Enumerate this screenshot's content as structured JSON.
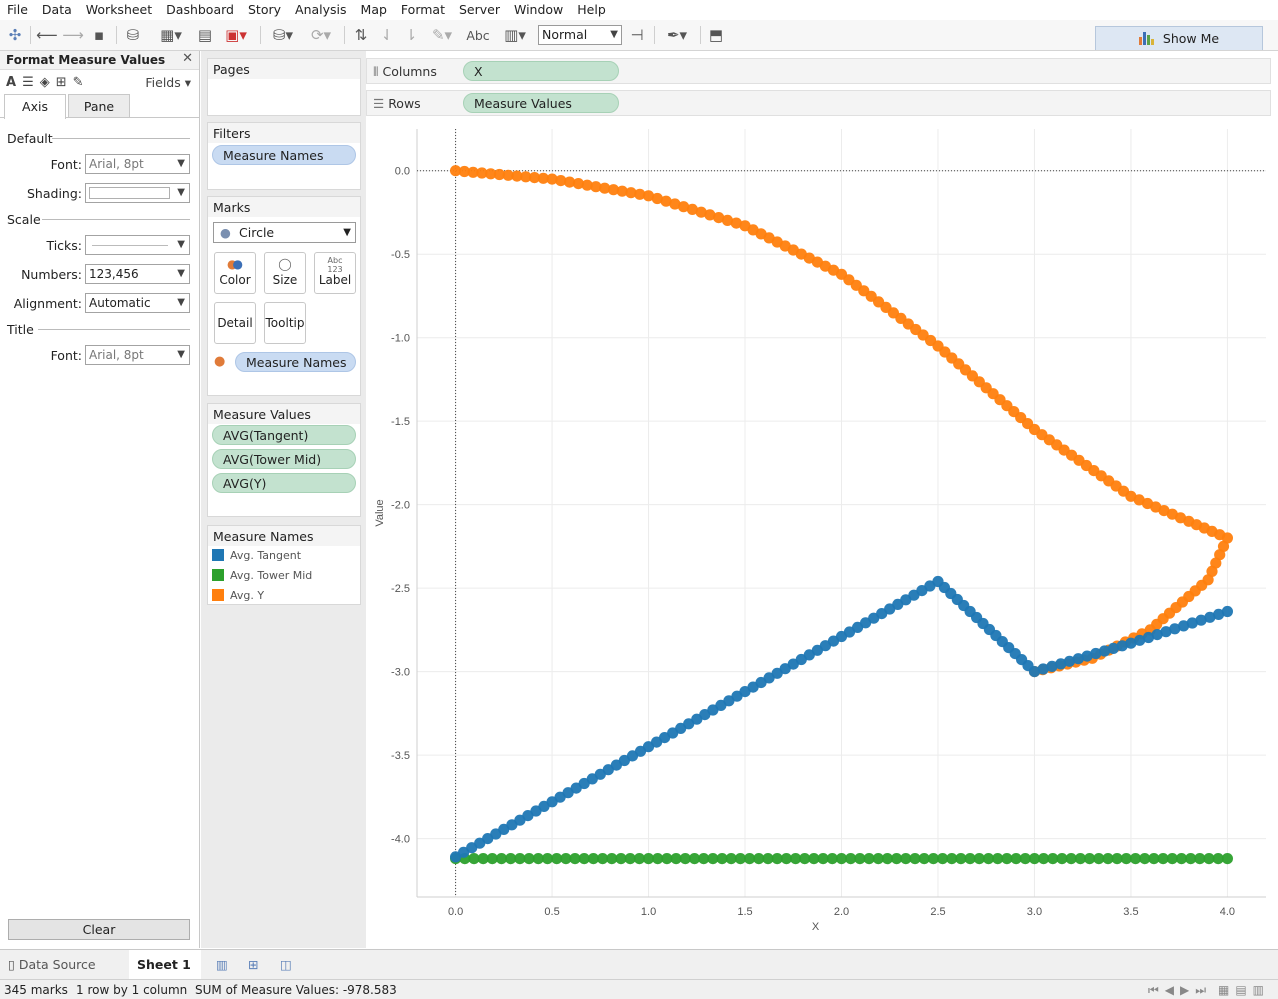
{
  "menu": [
    "File",
    "Data",
    "Worksheet",
    "Dashboard",
    "Story",
    "Analysis",
    "Map",
    "Format",
    "Server",
    "Window",
    "Help"
  ],
  "toolbar": {
    "view_size": "Normal",
    "abc": "Abc"
  },
  "show_me": "Show Me",
  "format_panel": {
    "title": "Format Measure Values",
    "fields": "Fields",
    "tabs": [
      "Axis",
      "Pane"
    ],
    "sections": {
      "default": "Default",
      "scale": "Scale",
      "title": "Title"
    },
    "rows": {
      "font_label": "Font:",
      "font_value": "Arial, 8pt",
      "shading_label": "Shading:",
      "ticks_label": "Ticks:",
      "numbers_label": "Numbers:",
      "numbers_value": "123,456",
      "alignment_label": "Alignment:",
      "alignment_value": "Automatic",
      "title_font_label": "Font:",
      "title_font_value": "Arial, 8pt"
    },
    "clear": "Clear"
  },
  "pages": {
    "title": "Pages"
  },
  "filters": {
    "title": "Filters",
    "pill": "Measure Names"
  },
  "marks": {
    "title": "Marks",
    "type": "Circle",
    "buttons": {
      "color": "Color",
      "size": "Size",
      "label": "Label",
      "label_icon": "Abc\n123",
      "detail": "Detail",
      "tooltip": "Tooltip"
    },
    "color_pill": "Measure Names"
  },
  "measure_values": {
    "title": "Measure Values",
    "pills": [
      "AVG(Tangent)",
      "AVG(Tower Mid)",
      "AVG(Y)"
    ]
  },
  "legend": {
    "title": "Measure Names",
    "items": [
      {
        "label": "Avg. Tangent",
        "color": "#1f77b4"
      },
      {
        "label": "Avg. Tower Mid",
        "color": "#2ca02c"
      },
      {
        "label": "Avg. Y",
        "color": "#ff7f0e"
      }
    ]
  },
  "columns_shelf": {
    "label": "Columns",
    "pill": "X"
  },
  "rows_shelf": {
    "label": "Rows",
    "pill": "Measure Values"
  },
  "chart_data": {
    "type": "scatter",
    "xlabel": "X",
    "ylabel": "Value",
    "xlim": [
      -0.2,
      4.2
    ],
    "ylim": [
      -4.35,
      0.25
    ],
    "x_ticks": [
      "0.0",
      "0.5",
      "1.0",
      "1.5",
      "2.0",
      "2.5",
      "3.0",
      "3.5",
      "4.0"
    ],
    "y_ticks": [
      "0.0",
      "-0.5",
      "-1.0",
      "-1.5",
      "-2.0",
      "-2.5",
      "-3.0",
      "-3.5",
      "-4.0"
    ],
    "grid": true,
    "series": [
      {
        "name": "Avg. Tangent",
        "color": "#1f77b4",
        "points": [
          [
            0,
            -4.11
          ],
          [
            0.5,
            -3.78
          ],
          [
            1,
            -3.45
          ],
          [
            1.5,
            -3.12
          ],
          [
            2,
            -2.79
          ],
          [
            2.5,
            -2.46
          ],
          [
            3,
            -3.0
          ],
          [
            3.5,
            -2.83
          ],
          [
            4,
            -2.64
          ]
        ]
      },
      {
        "name": "Avg. Tower Mid",
        "color": "#2ca02c",
        "points": [
          [
            0,
            -4.12
          ],
          [
            1,
            -4.12
          ],
          [
            2,
            -4.12
          ],
          [
            3,
            -4.12
          ],
          [
            4,
            -4.12
          ]
        ]
      },
      {
        "name": "Avg. Y",
        "color": "#ff7f0e",
        "points": [
          [
            0,
            0
          ],
          [
            0.5,
            -0.05
          ],
          [
            1,
            -0.15
          ],
          [
            1.5,
            -0.33
          ],
          [
            2,
            -0.62
          ],
          [
            2.5,
            -1.05
          ],
          [
            3,
            -1.55
          ],
          [
            3.5,
            -1.95
          ],
          [
            3.8,
            -2.1
          ],
          [
            4,
            -2.2
          ],
          [
            3.9,
            -2.45
          ],
          [
            3.6,
            -2.75
          ],
          [
            3.3,
            -2.92
          ],
          [
            3,
            -3.0
          ]
        ]
      }
    ]
  },
  "sheet_tabs": {
    "data_source": "Data Source",
    "sheet": "Sheet 1"
  },
  "status": {
    "marks": "345 marks",
    "dims": "1 row by 1 column",
    "sum": "SUM of Measure Values: -978.583"
  }
}
